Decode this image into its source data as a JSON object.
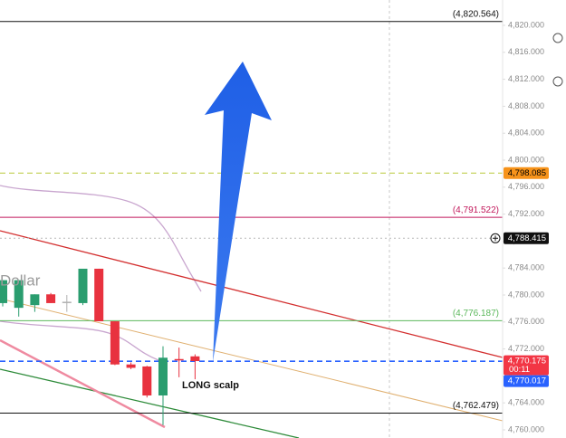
{
  "chart_data": {
    "type": "candlestick",
    "symbol_text": "Dollar",
    "annotation": "LONG scalp",
    "categories": [
      null,
      null,
      null,
      null,
      null,
      null,
      null,
      null,
      null,
      null,
      null,
      null,
      null
    ],
    "open": [
      4778.8,
      4778.1,
      4778.5,
      4780.1,
      4779.0,
      4778.8,
      4783.9,
      4776.1,
      4769.7,
      4769.4,
      4765.1,
      4770.5,
      4770.9
    ],
    "high": [
      4782.2,
      4782.2,
      4780.1,
      4780.3,
      4780.0,
      4783.9,
      4783.9,
      4776.1,
      4770.0,
      4769.5,
      4772.4,
      4772.2,
      4771.2
    ],
    "low": [
      4778.3,
      4776.8,
      4777.5,
      4778.8,
      4777.5,
      4778.5,
      4776.1,
      4769.6,
      4769.0,
      4764.8,
      4760.7,
      4767.8,
      4767.5
    ],
    "close": [
      4782.2,
      4782.2,
      4780.1,
      4778.8,
      4779.0,
      4783.9,
      4776.1,
      4769.7,
      4769.2,
      4765.1,
      4770.7,
      4770.3,
      4770.2
    ],
    "up_color": "#2a9d6f",
    "down_color": "#e8323f",
    "flat_color": "#b0b0b0",
    "ylim": [
      4758.79,
      4823.76
    ],
    "yticks": [
      {
        "value": 4820,
        "label": "4,820.000"
      },
      {
        "value": 4816,
        "label": "4,816.000"
      },
      {
        "value": 4812,
        "label": "4,812.000"
      },
      {
        "value": 4808,
        "label": "4,808.000"
      },
      {
        "value": 4804,
        "label": "4,804.000"
      },
      {
        "value": 4800,
        "label": "4,800.000"
      },
      {
        "value": 4796,
        "label": "4,796.000"
      },
      {
        "value": 4792,
        "label": "4,792.000"
      },
      {
        "value": 4788,
        "label": "4,788.000"
      },
      {
        "value": 4784,
        "label": "4,784.000"
      },
      {
        "value": 4780,
        "label": "4,780.000"
      },
      {
        "value": 4776,
        "label": "4,776.000"
      },
      {
        "value": 4772,
        "label": "4,772.000"
      },
      {
        "value": 4768,
        "label": "4,768.000"
      },
      {
        "value": 4764,
        "label": "4,764.000"
      },
      {
        "value": 4760,
        "label": "4,760.000"
      }
    ],
    "levels": [
      {
        "value": 4820.564,
        "label": "(4,820.564)",
        "color": "#111111",
        "style": "solid"
      },
      {
        "value": 4798.085,
        "color": "#b9c93a",
        "style": "dashed"
      },
      {
        "value": 4791.522,
        "label": "(4,791.522)",
        "color": "#c2185b",
        "style": "solid"
      },
      {
        "value": 4788.415,
        "color": "#b8b8b8",
        "style": "dotted"
      },
      {
        "value": 4776.187,
        "label": "(4,776.187)",
        "color": "#5cb85c",
        "style": "solid"
      },
      {
        "value": 4770.175,
        "color": "#2962ff",
        "style": "dashed"
      },
      {
        "value": 4762.479,
        "label": "(4,762.479)",
        "color": "#111111",
        "style": "solid"
      }
    ],
    "price_tags": [
      {
        "value": 4798.085,
        "label": "4,798.085",
        "bg": "#f7931a",
        "fg": "#000000"
      },
      {
        "value": 4788.415,
        "label": "4,788.415",
        "bg": "#111111",
        "fg": "#ffffff"
      },
      {
        "value": 4770.175,
        "label": "4,770.175",
        "sub": "00:11",
        "bg": "#f23645",
        "fg": "#ffffff"
      },
      {
        "value": 4770.017,
        "label": "4,770.017",
        "bg": "#2962ff",
        "fg": "#ffffff"
      }
    ]
  }
}
